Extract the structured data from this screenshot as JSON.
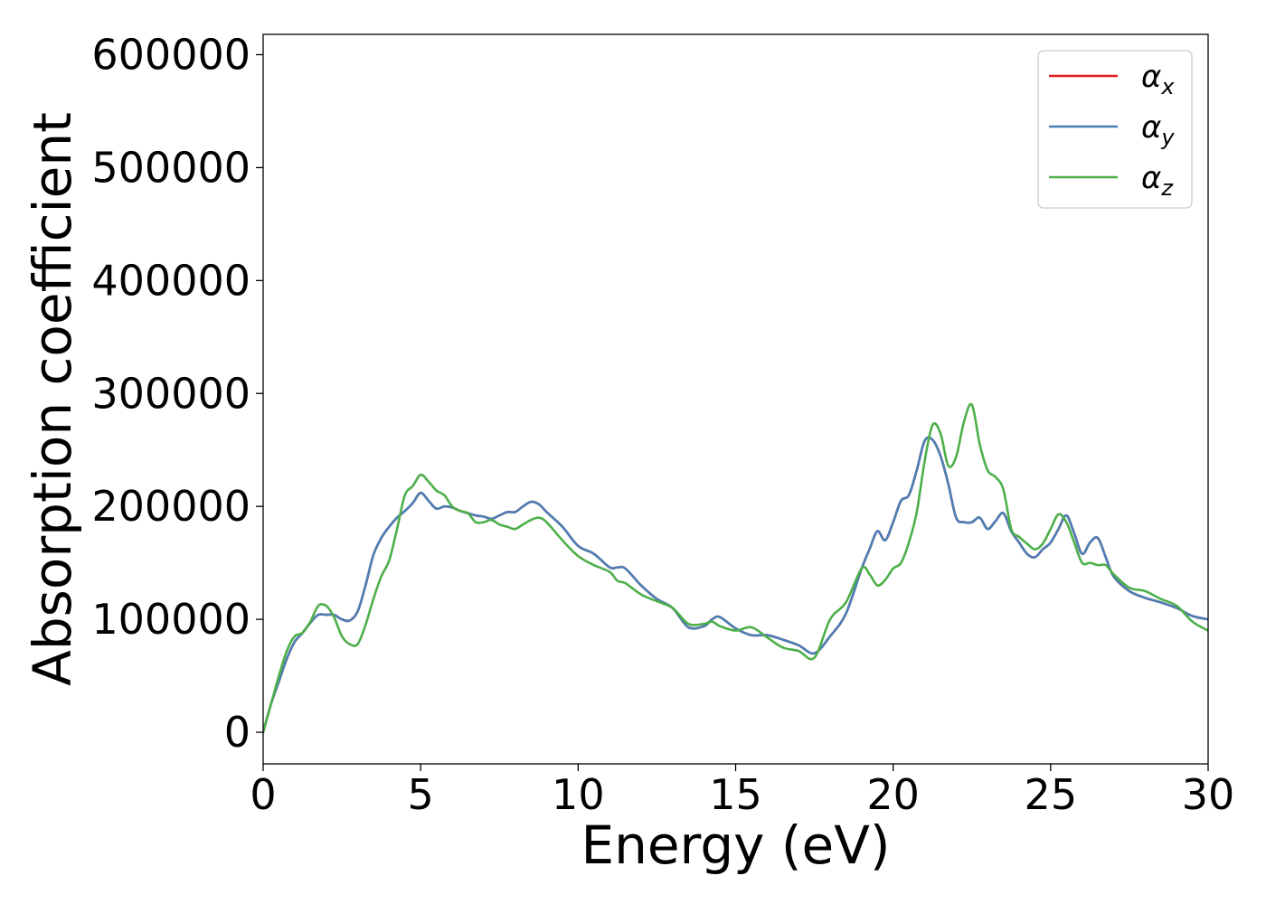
{
  "chart_data": {
    "type": "line",
    "title": "",
    "xlabel": "Energy (eV)",
    "ylabel": "Absorption coefficient",
    "xlim": [
      0,
      30
    ],
    "ylim": [
      -28000,
      618000
    ],
    "xticks": [
      0,
      5,
      10,
      15,
      20,
      25,
      30
    ],
    "xtick_labels": [
      "0",
      "5",
      "10",
      "15",
      "20",
      "25",
      "30"
    ],
    "yticks": [
      0,
      100000,
      200000,
      300000,
      400000,
      500000,
      600000
    ],
    "ytick_labels": [
      "0",
      "100000",
      "200000",
      "300000",
      "400000",
      "500000",
      "600000"
    ],
    "grid": false,
    "legend_position": "top-right",
    "series": [
      {
        "name": "α",
        "subscript": "x",
        "color": "#e41a1c",
        "x": [
          0,
          0.25,
          0.5,
          0.75,
          1,
          1.25,
          1.5,
          1.75,
          2,
          2.25,
          2.5,
          2.75,
          3,
          3.25,
          3.5,
          3.75,
          4,
          4.25,
          4.5,
          4.75,
          5,
          5.25,
          5.5,
          5.75,
          6,
          6.25,
          6.5,
          6.75,
          7,
          7.25,
          7.5,
          7.75,
          8,
          8.25,
          8.5,
          8.75,
          9,
          9.5,
          10,
          10.5,
          11,
          11.25,
          11.5,
          12,
          12.5,
          13,
          13.5,
          14,
          14.25,
          14.5,
          15,
          15.5,
          16,
          16.5,
          17,
          17.5,
          18,
          18.5,
          19,
          19.25,
          19.5,
          19.75,
          20,
          20.25,
          20.5,
          20.75,
          21,
          21.25,
          21.5,
          21.75,
          22,
          22.25,
          22.5,
          22.75,
          23,
          23.25,
          23.5,
          23.75,
          24,
          24.25,
          24.5,
          24.75,
          25,
          25.25,
          25.5,
          25.75,
          26,
          26.25,
          26.5,
          26.75,
          27,
          27.5,
          28,
          28.5,
          29,
          29.5,
          30
        ],
        "values": [
          0,
          25000,
          45000,
          65000,
          80000,
          88000,
          97000,
          104000,
          104000,
          104000,
          100000,
          99000,
          107000,
          130000,
          157000,
          172000,
          182000,
          190000,
          196000,
          203000,
          212000,
          205000,
          198000,
          200000,
          199000,
          196000,
          194000,
          192000,
          191000,
          189000,
          192000,
          195000,
          195000,
          200000,
          204000,
          202000,
          195000,
          182000,
          165000,
          158000,
          146000,
          146000,
          145000,
          130000,
          118000,
          110000,
          93000,
          94000,
          100000,
          102000,
          92000,
          86000,
          86000,
          82000,
          77000,
          70000,
          85000,
          105000,
          145000,
          162000,
          178000,
          170000,
          186000,
          205000,
          210000,
          232000,
          258000,
          259000,
          245000,
          220000,
          190000,
          186000,
          186000,
          190000,
          180000,
          187000,
          194000,
          178000,
          168000,
          158000,
          155000,
          162000,
          168000,
          180000,
          192000,
          176000,
          158000,
          168000,
          172000,
          155000,
          138000,
          125000,
          119000,
          115000,
          110000,
          103000,
          100000
        ]
      },
      {
        "name": "α",
        "subscript": "y",
        "color": "#4a7fb5",
        "x": [
          0,
          0.25,
          0.5,
          0.75,
          1,
          1.25,
          1.5,
          1.75,
          2,
          2.25,
          2.5,
          2.75,
          3,
          3.25,
          3.5,
          3.75,
          4,
          4.25,
          4.5,
          4.75,
          5,
          5.25,
          5.5,
          5.75,
          6,
          6.25,
          6.5,
          6.75,
          7,
          7.25,
          7.5,
          7.75,
          8,
          8.25,
          8.5,
          8.75,
          9,
          9.5,
          10,
          10.5,
          11,
          11.25,
          11.5,
          12,
          12.5,
          13,
          13.5,
          14,
          14.25,
          14.5,
          15,
          15.5,
          16,
          16.5,
          17,
          17.5,
          18,
          18.5,
          19,
          19.25,
          19.5,
          19.75,
          20,
          20.25,
          20.5,
          20.75,
          21,
          21.25,
          21.5,
          21.75,
          22,
          22.25,
          22.5,
          22.75,
          23,
          23.25,
          23.5,
          23.75,
          24,
          24.25,
          24.5,
          24.75,
          25,
          25.25,
          25.5,
          25.75,
          26,
          26.25,
          26.5,
          26.75,
          27,
          27.5,
          28,
          28.5,
          29,
          29.5,
          30
        ],
        "values": [
          0,
          25000,
          45000,
          65000,
          80000,
          88000,
          97000,
          104000,
          104000,
          104000,
          100000,
          99000,
          107000,
          130000,
          157000,
          172000,
          182000,
          190000,
          196000,
          203000,
          212000,
          205000,
          198000,
          200000,
          199000,
          196000,
          194000,
          192000,
          191000,
          189000,
          192000,
          195000,
          195000,
          200000,
          204000,
          202000,
          195000,
          182000,
          165000,
          158000,
          146000,
          146000,
          145000,
          130000,
          118000,
          110000,
          93000,
          94000,
          100000,
          102000,
          92000,
          86000,
          86000,
          82000,
          77000,
          70000,
          85000,
          105000,
          145000,
          162000,
          178000,
          170000,
          186000,
          205000,
          210000,
          232000,
          258000,
          259000,
          245000,
          220000,
          190000,
          186000,
          186000,
          190000,
          180000,
          187000,
          194000,
          178000,
          168000,
          158000,
          155000,
          162000,
          168000,
          180000,
          192000,
          176000,
          158000,
          168000,
          172000,
          155000,
          138000,
          125000,
          119000,
          115000,
          110000,
          103000,
          100000
        ]
      },
      {
        "name": "α",
        "subscript": "z",
        "color": "#4daf4a",
        "x": [
          0,
          0.25,
          0.5,
          0.75,
          1,
          1.25,
          1.5,
          1.75,
          2,
          2.25,
          2.5,
          2.75,
          3,
          3.25,
          3.5,
          3.75,
          4,
          4.25,
          4.5,
          4.75,
          5,
          5.25,
          5.5,
          5.75,
          6,
          6.25,
          6.5,
          6.75,
          7,
          7.25,
          7.5,
          7.75,
          8,
          8.25,
          8.5,
          8.75,
          9,
          9.5,
          10,
          10.5,
          11,
          11.25,
          11.5,
          12,
          12.5,
          13,
          13.5,
          14,
          14.25,
          14.5,
          15,
          15.5,
          16,
          16.5,
          17,
          17.5,
          18,
          18.5,
          19,
          19.25,
          19.5,
          19.75,
          20,
          20.25,
          20.5,
          20.75,
          21,
          21.25,
          21.5,
          21.75,
          22,
          22.25,
          22.5,
          22.75,
          23,
          23.25,
          23.5,
          23.75,
          24,
          24.25,
          24.5,
          24.75,
          25,
          25.25,
          25.5,
          25.75,
          26,
          26.25,
          26.5,
          26.75,
          27,
          27.5,
          28,
          28.5,
          29,
          29.5,
          30
        ],
        "values": [
          0,
          25000,
          50000,
          72000,
          85000,
          88000,
          98000,
          112000,
          112000,
          102000,
          85000,
          78000,
          78000,
          95000,
          118000,
          138000,
          152000,
          180000,
          210000,
          218000,
          228000,
          222000,
          214000,
          210000,
          200000,
          196000,
          194000,
          186000,
          186000,
          188000,
          184000,
          182000,
          180000,
          184000,
          188000,
          190000,
          186000,
          170000,
          156000,
          148000,
          142000,
          134000,
          132000,
          122000,
          116000,
          110000,
          96000,
          96000,
          98000,
          94000,
          90000,
          93000,
          84000,
          75000,
          72000,
          66000,
          100000,
          115000,
          145000,
          140000,
          130000,
          135000,
          145000,
          150000,
          168000,
          195000,
          240000,
          272000,
          265000,
          236000,
          244000,
          275000,
          290000,
          255000,
          232000,
          226000,
          215000,
          180000,
          173000,
          167000,
          162000,
          167000,
          180000,
          193000,
          186000,
          168000,
          150000,
          150000,
          148000,
          148000,
          140000,
          128000,
          125000,
          118000,
          112000,
          98000,
          90000
        ]
      }
    ]
  }
}
